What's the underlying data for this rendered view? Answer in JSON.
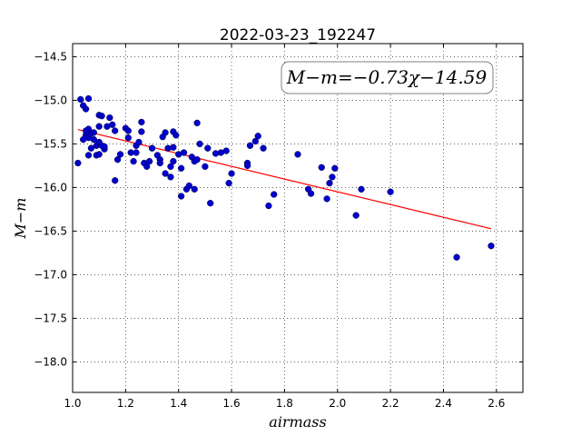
{
  "chart_data": {
    "type": "scatter",
    "title": "2022-03-23_192247",
    "xlabel": "airmass",
    "ylabel": "M−m",
    "xlim": [
      1.0,
      2.7
    ],
    "ylim": [
      -18.35,
      -14.35
    ],
    "y_inverted": true,
    "grid": true,
    "x_ticks": [
      1.0,
      1.2,
      1.4,
      1.6,
      1.8,
      2.0,
      2.2,
      2.4,
      2.6
    ],
    "x_tick_labels": [
      "1.0",
      "1.2",
      "1.4",
      "1.6",
      "1.8",
      "2.0",
      "2.2",
      "2.4",
      "2.6"
    ],
    "y_ticks": [
      -14.5,
      -15.0,
      -15.5,
      -16.0,
      -16.5,
      -17.0,
      -17.5,
      -18.0
    ],
    "y_tick_labels": [
      "−14.5",
      "−15.0",
      "−15.5",
      "−16.0",
      "−16.5",
      "−17.0",
      "−17.5",
      "−18.0"
    ],
    "annotation": "M−m=−0.73χ−14.59",
    "annotation_placement": "top-right",
    "fit_line": {
      "slope": -0.73,
      "intercept": -14.59,
      "x_range": [
        1.02,
        2.58
      ],
      "color": "#ff0000"
    },
    "point_color": "#0000cc",
    "points": [
      [
        1.02,
        -15.72
      ],
      [
        1.03,
        -14.99
      ],
      [
        1.04,
        -15.06
      ],
      [
        1.04,
        -15.45
      ],
      [
        1.05,
        -15.1
      ],
      [
        1.05,
        -15.4
      ],
      [
        1.05,
        -15.35
      ],
      [
        1.06,
        -14.98
      ],
      [
        1.06,
        -15.33
      ],
      [
        1.06,
        -15.43
      ],
      [
        1.06,
        -15.63
      ],
      [
        1.07,
        -15.38
      ],
      [
        1.07,
        -15.55
      ],
      [
        1.08,
        -15.37
      ],
      [
        1.08,
        -15.45
      ],
      [
        1.09,
        -15.63
      ],
      [
        1.09,
        -15.52
      ],
      [
        1.1,
        -15.17
      ],
      [
        1.1,
        -15.3
      ],
      [
        1.1,
        -15.48
      ],
      [
        1.1,
        -15.62
      ],
      [
        1.11,
        -15.18
      ],
      [
        1.11,
        -15.52
      ],
      [
        1.12,
        -15.56
      ],
      [
        1.12,
        -15.53
      ],
      [
        1.13,
        -15.3
      ],
      [
        1.14,
        -15.2
      ],
      [
        1.15,
        -15.28
      ],
      [
        1.16,
        -15.35
      ],
      [
        1.16,
        -15.92
      ],
      [
        1.17,
        -15.68
      ],
      [
        1.18,
        -15.62
      ],
      [
        1.2,
        -15.32
      ],
      [
        1.21,
        -15.35
      ],
      [
        1.21,
        -15.43
      ],
      [
        1.22,
        -15.6
      ],
      [
        1.23,
        -15.7
      ],
      [
        1.24,
        -15.52
      ],
      [
        1.24,
        -15.6
      ],
      [
        1.25,
        -15.48
      ],
      [
        1.26,
        -15.25
      ],
      [
        1.26,
        -15.36
      ],
      [
        1.27,
        -15.72
      ],
      [
        1.28,
        -15.76
      ],
      [
        1.29,
        -15.7
      ],
      [
        1.3,
        -15.55
      ],
      [
        1.32,
        -15.63
      ],
      [
        1.33,
        -15.68
      ],
      [
        1.33,
        -15.72
      ],
      [
        1.34,
        -15.42
      ],
      [
        1.35,
        -15.37
      ],
      [
        1.35,
        -15.84
      ],
      [
        1.36,
        -15.55
      ],
      [
        1.37,
        -15.88
      ],
      [
        1.37,
        -15.76
      ],
      [
        1.38,
        -15.54
      ],
      [
        1.38,
        -15.36
      ],
      [
        1.38,
        -15.7
      ],
      [
        1.39,
        -15.4
      ],
      [
        1.4,
        -15.62
      ],
      [
        1.41,
        -15.78
      ],
      [
        1.41,
        -16.1
      ],
      [
        1.42,
        -15.6
      ],
      [
        1.43,
        -16.02
      ],
      [
        1.44,
        -15.98
      ],
      [
        1.45,
        -15.65
      ],
      [
        1.46,
        -15.7
      ],
      [
        1.46,
        -16.02
      ],
      [
        1.47,
        -15.68
      ],
      [
        1.47,
        -15.26
      ],
      [
        1.48,
        -15.5
      ],
      [
        1.5,
        -15.76
      ],
      [
        1.51,
        -15.55
      ],
      [
        1.52,
        -16.18
      ],
      [
        1.54,
        -15.61
      ],
      [
        1.56,
        -15.6
      ],
      [
        1.58,
        -15.58
      ],
      [
        1.59,
        -15.95
      ],
      [
        1.6,
        -15.84
      ],
      [
        1.66,
        -15.72
      ],
      [
        1.66,
        -15.75
      ],
      [
        1.67,
        -15.52
      ],
      [
        1.69,
        -15.47
      ],
      [
        1.7,
        -15.41
      ],
      [
        1.72,
        -15.55
      ],
      [
        1.74,
        -16.21
      ],
      [
        1.76,
        -16.08
      ],
      [
        1.85,
        -15.62
      ],
      [
        1.89,
        -16.02
      ],
      [
        1.9,
        -16.07
      ],
      [
        1.94,
        -15.77
      ],
      [
        1.96,
        -16.13
      ],
      [
        1.97,
        -15.95
      ],
      [
        1.98,
        -15.88
      ],
      [
        1.99,
        -15.78
      ],
      [
        2.07,
        -16.32
      ],
      [
        2.09,
        -16.02
      ],
      [
        2.2,
        -16.05
      ],
      [
        2.45,
        -16.8
      ],
      [
        2.58,
        -16.67
      ]
    ]
  }
}
